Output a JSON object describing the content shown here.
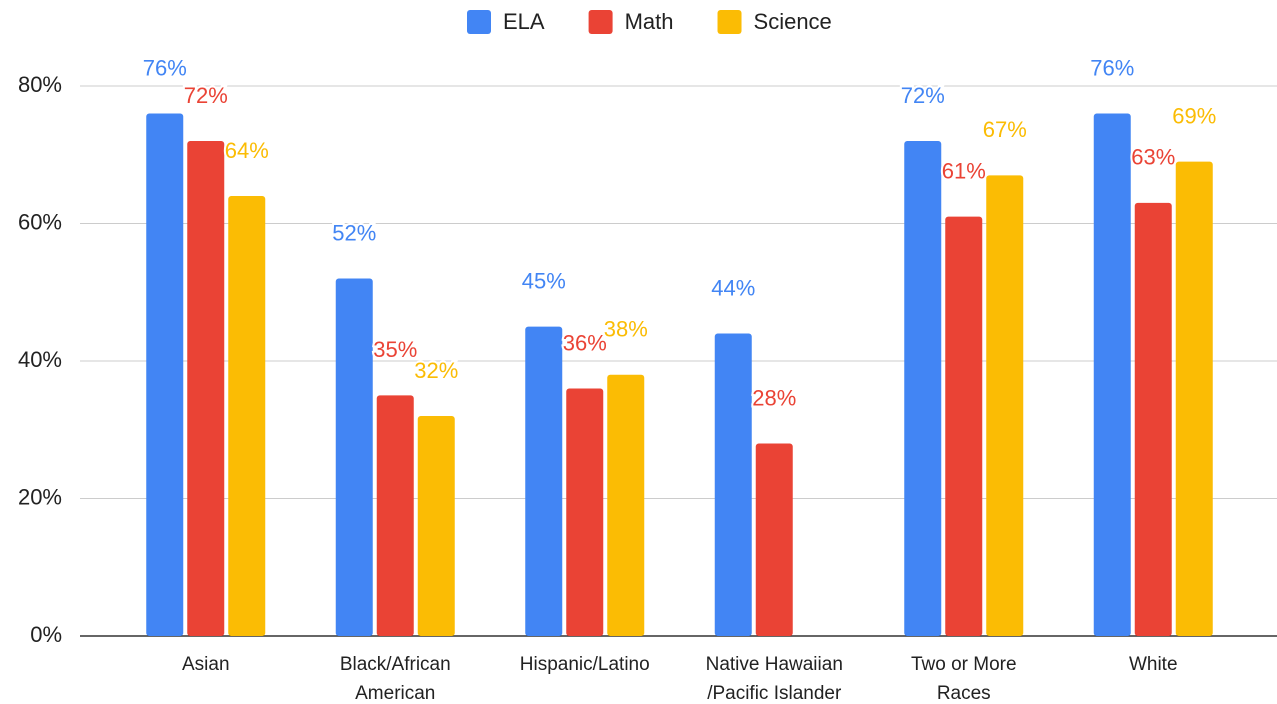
{
  "chart_data": {
    "type": "bar",
    "categories": [
      "Asian",
      "Black/African\nAmerican",
      "Hispanic/Latino",
      "Native Hawaiian\n/Pacific Islander",
      "Two or More\nRaces",
      "White"
    ],
    "series": [
      {
        "name": "ELA",
        "color": "#4285f4",
        "values": [
          76,
          52,
          45,
          44,
          72,
          76
        ],
        "value_labels": [
          "76%",
          "52%",
          "45%",
          "44%",
          "72%",
          "76%"
        ]
      },
      {
        "name": "Math",
        "color": "#ea4335",
        "values": [
          72,
          35,
          36,
          28,
          61,
          63
        ],
        "value_labels": [
          "72%",
          "35%",
          "36%",
          "28%",
          "61%",
          "63%"
        ]
      },
      {
        "name": "Science",
        "color": "#fbbc04",
        "values": [
          64,
          32,
          38,
          null,
          67,
          69
        ],
        "value_labels": [
          "64%",
          "32%",
          "38%",
          null,
          "67%",
          "69%"
        ]
      }
    ],
    "ylim": [
      0,
      80
    ],
    "yticks": [
      {
        "value": 0,
        "label": "0%"
      },
      {
        "value": 20,
        "label": "20%"
      },
      {
        "value": 40,
        "label": "40%"
      },
      {
        "value": 60,
        "label": "60%"
      },
      {
        "value": 80,
        "label": "80%"
      }
    ],
    "grid": true,
    "legend": "top"
  }
}
